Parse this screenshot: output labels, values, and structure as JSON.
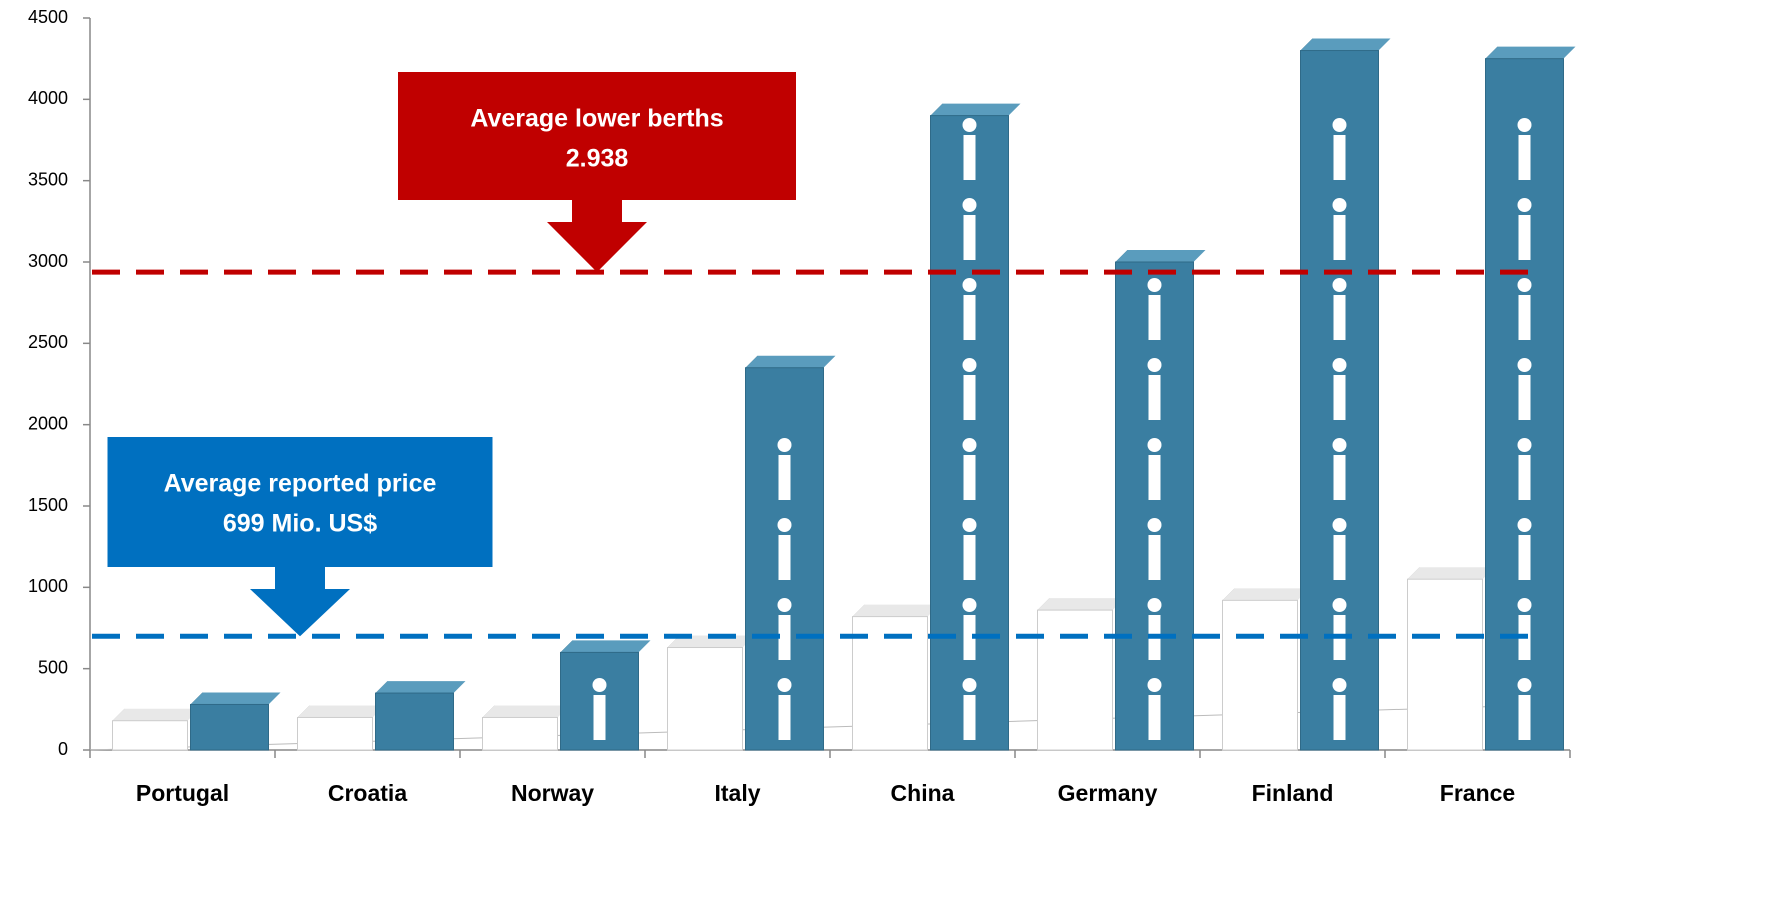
{
  "chart_data": {
    "type": "bar3d",
    "categories": [
      "Portugal",
      "Croatia",
      "Norway",
      "Italy",
      "China",
      "Germany",
      "Finland",
      "France"
    ],
    "series": [
      {
        "color": "#ffffff",
        "values": [
          180,
          200,
          200,
          630,
          820,
          860,
          920,
          1050
        ]
      },
      {
        "color": "#3a7ea1",
        "values": [
          280,
          350,
          600,
          2350,
          3900,
          3000,
          4300,
          4250
        ]
      }
    ],
    "ylim": [
      0,
      4500
    ],
    "yticks": [
      0,
      500,
      1000,
      1500,
      2000,
      2500,
      3000,
      3500,
      4000,
      4500
    ],
    "annotations": [
      {
        "text": "Average lower berths",
        "value": 2938,
        "value_label": "2.938",
        "color": "#c00000"
      },
      {
        "text": "Average reported price",
        "value": 699,
        "value_label": "699 Mio. US$",
        "color": "#0070c0"
      }
    ]
  }
}
